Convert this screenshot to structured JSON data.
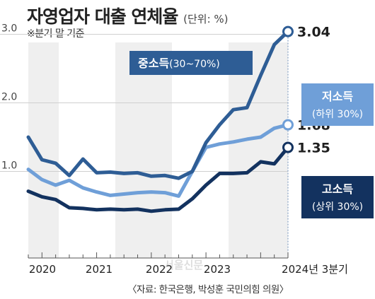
{
  "title": "자영업자 대출 연체율",
  "unit": "(단위: %)",
  "note": "※분기 말 기준",
  "source": "〈자료: 한국은행, 박성훈 국민의힘 의원〉",
  "watermark": "서울신문",
  "colors": {
    "jungso": "#2e5d95",
    "jeoso": "#6f9fd8",
    "goso": "#13325f",
    "band": "#efefef"
  },
  "chart_data": {
    "type": "line",
    "title": "자영업자 대출 연체율",
    "xlabel": "",
    "ylabel": "",
    "ylim": [
      0,
      3.3
    ],
    "yticks": [
      1.0,
      2.0,
      3.0
    ],
    "ytick_labels": [
      "1.0",
      "2.0",
      "3.0"
    ],
    "xtick_labels": [
      "2020",
      "2021",
      "2022",
      "2023",
      "2024년 3분기"
    ],
    "x": [
      "2019Q4",
      "2020Q1",
      "2020Q2",
      "2020Q3",
      "2020Q4",
      "2021Q1",
      "2021Q2",
      "2021Q3",
      "2021Q4",
      "2022Q1",
      "2022Q2",
      "2022Q3",
      "2022Q4",
      "2023Q1",
      "2023Q2",
      "2023Q3",
      "2023Q4",
      "2024Q1",
      "2024Q2",
      "2024Q3"
    ],
    "series": [
      {
        "name": "중소득",
        "sub": "(30~70%)",
        "values": [
          1.5,
          1.17,
          1.12,
          0.94,
          1.18,
          0.98,
          0.99,
          0.97,
          0.98,
          0.93,
          0.94,
          0.9,
          1.0,
          1.42,
          1.68,
          1.9,
          1.93,
          2.4,
          2.85,
          3.04
        ]
      },
      {
        "name": "저소득",
        "sub": "(하위 30%)",
        "values": [
          1.03,
          0.88,
          0.8,
          0.87,
          0.76,
          0.7,
          0.65,
          0.67,
          0.69,
          0.7,
          0.69,
          0.64,
          1.0,
          1.35,
          1.4,
          1.43,
          1.47,
          1.5,
          1.63,
          1.68
        ]
      },
      {
        "name": "고소득",
        "sub": "(상위 30%)",
        "values": [
          0.71,
          0.63,
          0.59,
          0.47,
          0.46,
          0.44,
          0.45,
          0.44,
          0.45,
          0.42,
          0.44,
          0.45,
          0.6,
          0.8,
          0.97,
          0.97,
          0.98,
          1.14,
          1.11,
          1.35
        ]
      }
    ],
    "end_labels": [
      "3.04",
      "1.68",
      "1.35"
    ]
  }
}
